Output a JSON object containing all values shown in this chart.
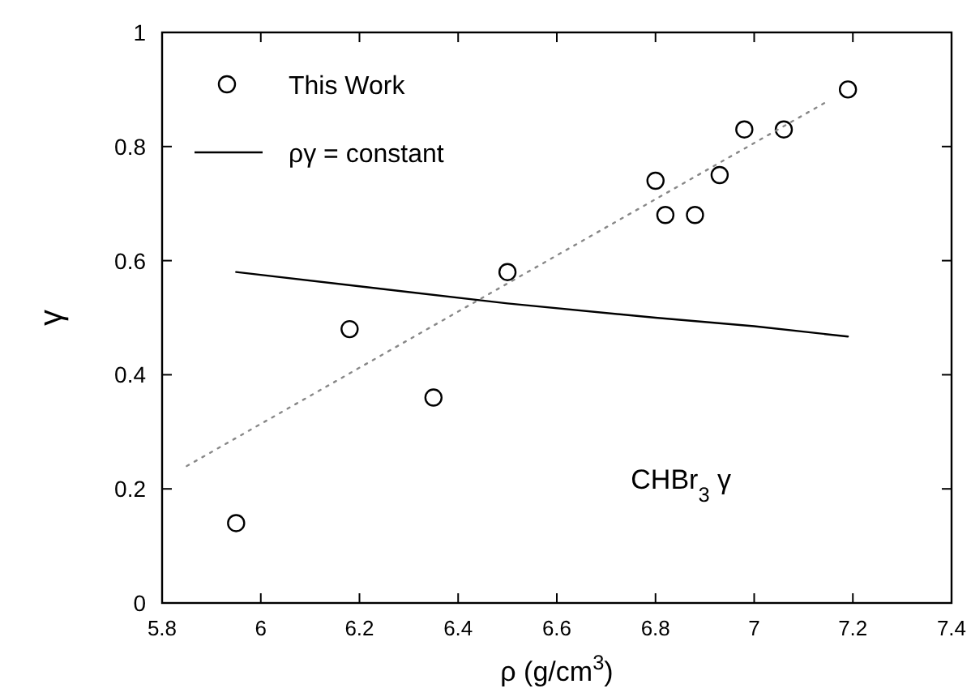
{
  "chart_data": {
    "type": "scatter",
    "xlabel": "ρ (g/cm$^{3}$)",
    "ylabel": "γ",
    "xlim": [
      5.8,
      7.4
    ],
    "ylim": [
      0,
      1
    ],
    "xticks": [
      5.8,
      6,
      6.2,
      6.4,
      6.6,
      6.8,
      7,
      7.2,
      7.4
    ],
    "yticks": [
      0,
      0.2,
      0.4,
      0.6,
      0.8,
      1
    ],
    "legend": "top left",
    "grid": false,
    "annotations": [
      "CHBr$_{3}$ γ"
    ],
    "series": [
      {
        "name": "This Work",
        "marker": "circle",
        "color": "#000000",
        "x": [
          5.95,
          6.18,
          6.35,
          6.5,
          6.8,
          6.82,
          6.88,
          6.93,
          6.98,
          7.06,
          7.19
        ],
        "values": [
          0.14,
          0.48,
          0.36,
          0.58,
          0.74,
          0.68,
          0.68,
          0.75,
          0.83,
          0.83,
          0.9
        ]
      },
      {
        "name": "ργ = constant",
        "type": "line",
        "line_style": "solid",
        "color": "#000000",
        "x": [
          5.95,
          6.2,
          6.5,
          6.8,
          7.0,
          7.19
        ],
        "values": [
          0.58,
          0.555,
          0.525,
          0.5,
          0.485,
          0.467
        ]
      },
      {
        "type": "line",
        "line_style": "dotted",
        "color": "#888888",
        "x": [
          5.85,
          7.15
        ],
        "values": [
          0.24,
          0.88
        ]
      }
    ]
  }
}
